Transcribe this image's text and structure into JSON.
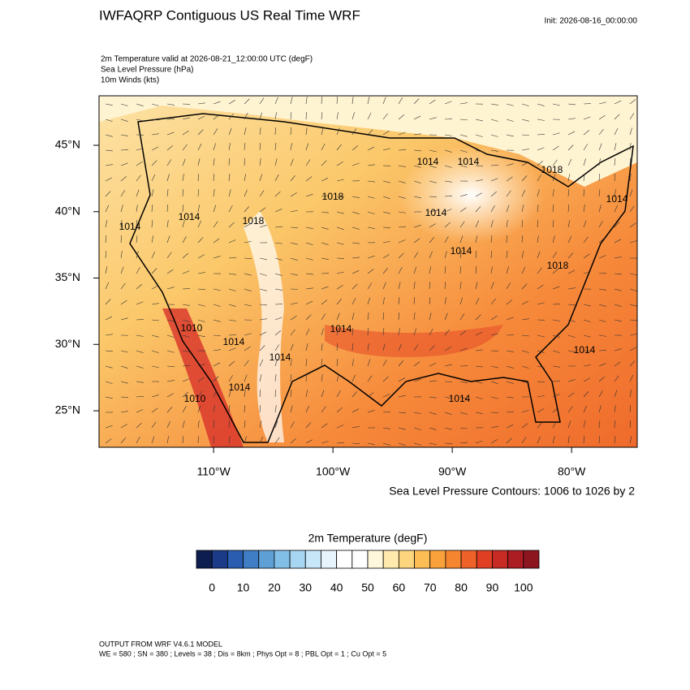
{
  "header": {
    "title": "IWFAQRP Contiguous US Real Time WRF",
    "init": "Init: 2026-08-16_00:00:00",
    "fields": [
      "2m Temperature valid at 2026-08-21_12:00:00 UTC   (degF)",
      "Sea Level Pressure   (hPa)",
      "10m Winds   (kts)"
    ]
  },
  "map": {
    "xlim": [
      -119.6,
      -74.5
    ],
    "ylim": [
      22.25,
      48.73
    ],
    "xticks": [
      {
        "value": -110,
        "label": "110°W"
      },
      {
        "value": -100,
        "label": "100°W"
      },
      {
        "value": -90,
        "label": "90°W"
      },
      {
        "value": -80,
        "label": "80°W"
      }
    ],
    "yticks": [
      {
        "value": 25,
        "label": "25°N"
      },
      {
        "value": 30,
        "label": "30°N"
      },
      {
        "value": 35,
        "label": "35°N"
      },
      {
        "value": 40,
        "label": "40°N"
      },
      {
        "value": 45,
        "label": "45°N"
      }
    ],
    "contour_labels": [
      "1014",
      "1014",
      "1018",
      "1014",
      "1018",
      "1014",
      "1014",
      "1018",
      "1014",
      "1014",
      "1014",
      "1014",
      "1014",
      "1014",
      "1010",
      "1010",
      "1014",
      "1014",
      "1018"
    ],
    "contour_note": "Sea Level Pressure Contours: 1006 to 1026 by 2"
  },
  "colorbar": {
    "title": "2m Temperature  (degF)",
    "lim": [
      -5,
      105
    ],
    "colors": [
      "#0e1d4f",
      "#1b3a87",
      "#2a5db0",
      "#3f7dc4",
      "#5e9fd6",
      "#82bfe7",
      "#a6d6f2",
      "#c7e6f7",
      "#e7f4fb",
      "#ffffff",
      "#ffffff",
      "#fff7dc",
      "#ffe9ad",
      "#fdd57f",
      "#fcbd55",
      "#f9a23c",
      "#f5852f",
      "#ee6128",
      "#e03f24",
      "#c82a24",
      "#ab1d22",
      "#8c1520"
    ],
    "ticks": [
      0,
      10,
      20,
      30,
      40,
      50,
      60,
      70,
      80,
      90,
      100
    ]
  },
  "footer": [
    "OUTPUT FROM WRF V4.6.1 MODEL",
    "WE = 580 ; SN = 380 ; Levels = 38 ; Dis = 8km ; Phys Opt = 8 ; PBL Opt = 1 ; Cu Opt = 5"
  ]
}
